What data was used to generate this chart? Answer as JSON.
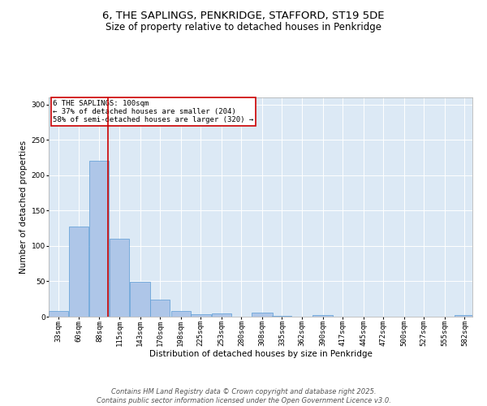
{
  "title": "6, THE SAPLINGS, PENKRIDGE, STAFFORD, ST19 5DE",
  "subtitle": "Size of property relative to detached houses in Penkridge",
  "xlabel": "Distribution of detached houses by size in Penkridge",
  "ylabel": "Number of detached properties",
  "annotation_line1": "6 THE SAPLINGS: 100sqm",
  "annotation_line2": "← 37% of detached houses are smaller (204)",
  "annotation_line3": "58% of semi-detached houses are larger (320) →",
  "bar_color": "#aec6e8",
  "bar_edge_color": "#5b9bd5",
  "vline_color": "#cc0000",
  "vline_x": 100,
  "annotation_box_color": "#cc0000",
  "background_color": "#dce9f5",
  "categories": [
    "33sqm",
    "60sqm",
    "88sqm",
    "115sqm",
    "143sqm",
    "170sqm",
    "198sqm",
    "225sqm",
    "253sqm",
    "280sqm",
    "308sqm",
    "335sqm",
    "362sqm",
    "390sqm",
    "417sqm",
    "445sqm",
    "472sqm",
    "500sqm",
    "527sqm",
    "555sqm",
    "582sqm"
  ],
  "bin_edges": [
    19.5,
    46.5,
    73.5,
    100.5,
    127.5,
    156.5,
    183.5,
    210.5,
    238.5,
    265.5,
    292.5,
    321.5,
    348.5,
    375.5,
    402.5,
    429.5,
    456.5,
    483.5,
    511.5,
    538.5,
    565.5,
    592.5
  ],
  "bin_centers": [
    33,
    60,
    88,
    115,
    143,
    170,
    198,
    225,
    253,
    280,
    308,
    335,
    362,
    390,
    417,
    445,
    472,
    500,
    527,
    555,
    582
  ],
  "values": [
    8,
    127,
    220,
    110,
    49,
    24,
    8,
    4,
    5,
    0,
    6,
    1,
    0,
    2,
    0,
    0,
    0,
    0,
    0,
    0,
    2
  ],
  "ylim": [
    0,
    310
  ],
  "yticks": [
    0,
    50,
    100,
    150,
    200,
    250,
    300
  ],
  "footer_line1": "Contains HM Land Registry data © Crown copyright and database right 2025.",
  "footer_line2": "Contains public sector information licensed under the Open Government Licence v3.0.",
  "title_fontsize": 9.5,
  "subtitle_fontsize": 8.5,
  "axis_label_fontsize": 7.5,
  "tick_fontsize": 6.5,
  "annotation_fontsize": 6.5,
  "footer_fontsize": 6.0
}
